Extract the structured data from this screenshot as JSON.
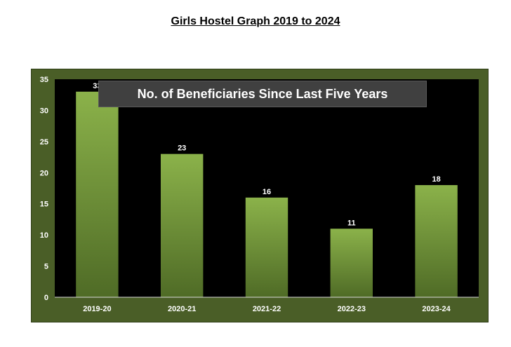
{
  "page": {
    "title": "Girls Hostel Graph 2019 to 2024"
  },
  "colors": {
    "frame": "#4a5e27",
    "plot_background": "#000000",
    "bar_top": "#8bb24a",
    "bar_bottom": "#4f6b26",
    "title_box": "#404040",
    "text": "#ffffff"
  },
  "chart_data": {
    "type": "bar",
    "title": "No. of Beneficiaries Since Last Five Years",
    "categories": [
      "2019-20",
      "2020-21",
      "2021-22",
      "2022-23",
      "2023-24"
    ],
    "values": [
      33,
      23,
      16,
      11,
      18
    ],
    "data_labels": [
      "33",
      "23",
      "16",
      "11",
      "18"
    ],
    "xlabel": "",
    "ylabel": "",
    "ylim": [
      0,
      35
    ],
    "yticks": [
      0,
      5,
      10,
      15,
      20,
      25,
      30,
      35
    ],
    "grid": false,
    "legend": "none"
  }
}
